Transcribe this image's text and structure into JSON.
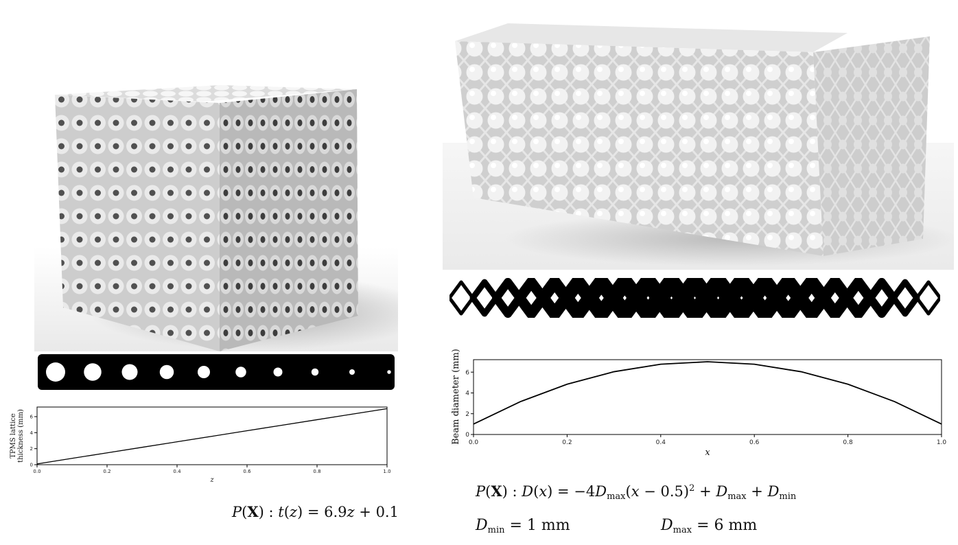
{
  "chart_data": [
    {
      "type": "line",
      "title": "",
      "xlabel": "z",
      "ylabel": "TPMS lattice thickness (mm)",
      "ylabel_lines": [
        "TPMS lattice",
        "thickness (mm)"
      ],
      "xlim": [
        0.0,
        1.0
      ],
      "ylim": [
        0,
        7.2
      ],
      "xticks": [
        0.0,
        0.2,
        0.4,
        0.6,
        0.8,
        1.0
      ],
      "xtick_labels": [
        "0.0",
        "0.2",
        "0.4",
        "0.6",
        "0.8",
        "1.0"
      ],
      "yticks": [
        0,
        2,
        4,
        6
      ],
      "ytick_labels": [
        "0",
        "2",
        "4",
        "6"
      ],
      "grid": false,
      "series": [
        {
          "x": [
            0.0,
            0.1,
            0.2,
            0.3,
            0.4,
            0.5,
            0.6,
            0.7,
            0.8,
            0.9,
            1.0
          ],
          "y": [
            0.1,
            0.79,
            1.48,
            2.17,
            2.86,
            3.55,
            4.24,
            4.93,
            5.62,
            6.31,
            7.0
          ]
        }
      ],
      "annotation": {
        "lhs": "P(X) : t(z) = 6.9z + 0.1"
      }
    },
    {
      "type": "line",
      "title": "",
      "xlabel": "x",
      "ylabel": "Beam diameter (mm)",
      "xlim": [
        0.0,
        1.0
      ],
      "ylim": [
        0,
        7.2
      ],
      "xticks": [
        0.0,
        0.2,
        0.4,
        0.6,
        0.8,
        1.0
      ],
      "xtick_labels": [
        "0.0",
        "0.2",
        "0.4",
        "0.6",
        "0.8",
        "1.0"
      ],
      "yticks": [
        0,
        2,
        4,
        6
      ],
      "ytick_labels": [
        "0",
        "2",
        "4",
        "6"
      ],
      "grid": false,
      "series": [
        {
          "x": [
            0.0,
            0.1,
            0.2,
            0.3,
            0.4,
            0.5,
            0.6,
            0.7,
            0.8,
            0.9,
            1.0
          ],
          "y": [
            1.0,
            3.16,
            4.84,
            6.04,
            6.76,
            7.0,
            6.76,
            6.04,
            4.84,
            3.16,
            1.0
          ]
        }
      ],
      "annotation": {
        "formula": "P(X) : D(x) = −4Dmax(x − 0.5)² + Dmax + Dmin",
        "dmin": "Dmin = 1 mm",
        "dmax": "Dmax = 6 mm"
      }
    }
  ],
  "figures": {
    "left_render": "TPMS lattice cube render",
    "right_render": "graded beam lattice block render",
    "left_strip": "TPMS cross-section strip",
    "right_strip": "beam lattice cross-section strip"
  },
  "colors": {
    "render_light": "#f2f2f2",
    "render_shadow": "#9a9a9a",
    "ink": "#000000"
  },
  "formulas": {
    "left": {
      "P": "P",
      "X": "X",
      "sep": ") : ",
      "t": "t",
      "z": "z",
      "rhs": "6.9",
      "z2": "z",
      "plus": " + 0.1"
    },
    "right": {
      "pre": "P",
      "X": "X",
      "D": "D",
      "x": "x",
      "minus4": "−4",
      "Dmax": "D",
      "max": "max",
      "inner": "x",
      "half": " − 0.5)",
      "sq": "2",
      "plus1": " + ",
      "Dmax2": "D",
      "max2": "max",
      "plus2": " + ",
      "Dmin": "D",
      "min": "min"
    },
    "dmin": {
      "D": "D",
      "sub": "min",
      "val": "= 1 mm"
    },
    "dmax": {
      "D": "D",
      "sub": "max",
      "val": "= 6 mm"
    }
  }
}
